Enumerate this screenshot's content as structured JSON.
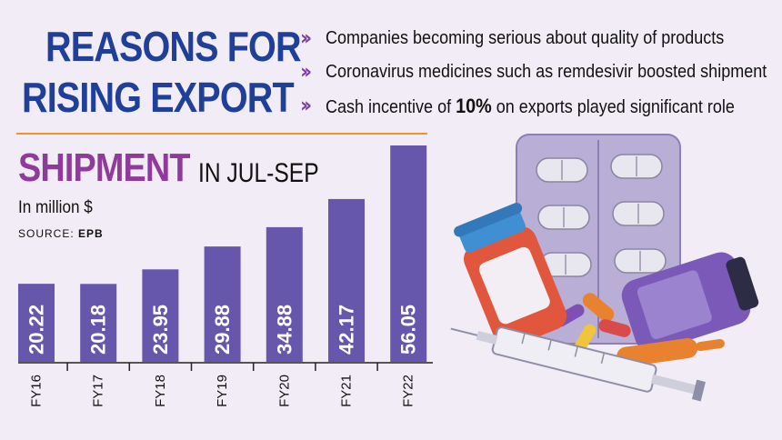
{
  "headline": {
    "line1": "REASONS FOR",
    "line2": "RISING EXPORT"
  },
  "reasons": [
    {
      "pre": "Companies becoming serious about quality of products",
      "bold": "",
      "post": ""
    },
    {
      "pre": "Coronavirus medicines such as remdesivir boosted shipment",
      "bold": "",
      "post": ""
    },
    {
      "pre": "Cash incentive of ",
      "bold": "10%",
      "post": " on exports played significant role"
    }
  ],
  "section": {
    "title": "SHIPMENT",
    "period": "IN JUL-SEP",
    "unit": "In million $",
    "source_label": "SOURCE:",
    "source_name": "EPB"
  },
  "colors": {
    "headline": "#1f3f98",
    "accent_purple": "#8e3b9c",
    "bar": "#6657ad",
    "rule": "#f0922e",
    "background": "#f1ecf5"
  },
  "illustration": {
    "icon": "medicine-pills-syringe-icon"
  },
  "chart_data": {
    "type": "bar",
    "categories": [
      "FY16",
      "FY17",
      "FY18",
      "FY19",
      "FY20",
      "FY21",
      "FY22"
    ],
    "values": [
      20.22,
      20.18,
      23.95,
      29.88,
      34.88,
      42.17,
      56.05
    ],
    "title": "SHIPMENT",
    "subtitle": "IN JUL-SEP",
    "ylabel": "In million $",
    "xlabel": "",
    "ylim": [
      0,
      56.05
    ],
    "grid": false,
    "legend": "none"
  }
}
